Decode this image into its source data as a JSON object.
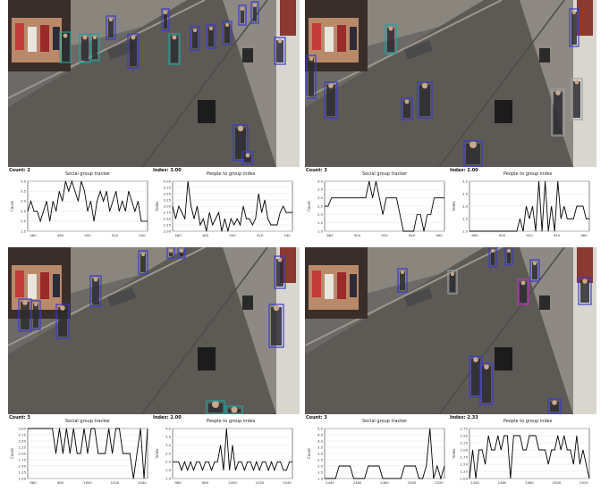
{
  "panels": [
    {
      "count_text": "Count: 2",
      "index_text": "Index: 3.00",
      "left_title": "Social group tracker",
      "right_title": "People to group index"
    },
    {
      "count_text": "Count: 3",
      "index_text": "Index: 2.00",
      "left_title": "Social group tracker",
      "right_title": "People to group index"
    },
    {
      "count_text": "Count: 3",
      "index_text": "Index: 2.00",
      "left_title": "Social group tracker",
      "right_title": "People to group index"
    },
    {
      "count_text": "Count: 3",
      "index_text": "Index: 2.33",
      "left_title": "Social group tracker",
      "right_title": "People to group index"
    }
  ],
  "axis_labels": {
    "left_y": "Count",
    "right_y": "Index"
  },
  "colors": {
    "box_blue": "#3a3ad0",
    "box_teal": "#1aa3a3",
    "box_magenta": "#c02fc0",
    "box_gray": "#9aa0a0",
    "line": "#000000"
  },
  "chart_data": [
    {
      "type": "line",
      "panel": 1,
      "title": "Social group tracker",
      "ylabel": "Count",
      "x_ticks": [
        "460",
        "480",
        "500",
        "520",
        "540"
      ],
      "y_ticks": [
        "1.5",
        "2.0",
        "2.5",
        "3.0",
        "3.5",
        "4.0"
      ],
      "ylim": [
        1.5,
        4.0
      ],
      "values": [
        2.5,
        3,
        2.5,
        2.5,
        2,
        2.5,
        3,
        2,
        3,
        2.5,
        3.5,
        3,
        4,
        3.5,
        4,
        3.5,
        3,
        4,
        3.5,
        2.5,
        3,
        2,
        3,
        3.5,
        3,
        3.5,
        2.5,
        3,
        3.5,
        2.5,
        3,
        2.5,
        3.5,
        3,
        2.5,
        3,
        2,
        2,
        2
      ]
    },
    {
      "type": "line",
      "panel": 1,
      "title": "People to group index",
      "ylabel": "Index",
      "x_ticks": [
        "460",
        "480",
        "500",
        "520",
        "540"
      ],
      "y_ticks": [
        "2.00",
        "2.25",
        "2.50",
        "2.75",
        "3.00",
        "3.25",
        "3.50",
        "3.75",
        "4.00"
      ],
      "ylim": [
        2.0,
        4.0
      ],
      "values": [
        3,
        2.5,
        3,
        2.75,
        2.5,
        4,
        3,
        2.5,
        3,
        2.25,
        2.5,
        2,
        2.75,
        2.25,
        2.5,
        2.75,
        2,
        2.5,
        2,
        2.5,
        2.25,
        2.5,
        2.25,
        3,
        2.5,
        2.5,
        2.25,
        2.5,
        3.5,
        2.75,
        3.25,
        2.5,
        2.25,
        2.25,
        2.25,
        2.75,
        3,
        2.75,
        2.75,
        2.75
      ]
    },
    {
      "type": "line",
      "panel": 2,
      "title": "Social group tracker",
      "ylabel": "Count",
      "x_ticks": [
        "880",
        "900",
        "920",
        "940",
        "960"
      ],
      "y_ticks": [
        "1.0",
        "1.5",
        "2.0",
        "2.5",
        "3.0",
        "3.5",
        "4.0"
      ],
      "ylim": [
        1.0,
        4.0
      ],
      "values": [
        2.5,
        2.5,
        3,
        3,
        3,
        3,
        3,
        3,
        3,
        3,
        3,
        3,
        3,
        4,
        3,
        4,
        3,
        2,
        3,
        3,
        3,
        3,
        2,
        1,
        1,
        1,
        1,
        2,
        2,
        1,
        2,
        2,
        3,
        3,
        3,
        3
      ]
    },
    {
      "type": "line",
      "panel": 2,
      "title": "People to group index",
      "ylabel": "Index",
      "x_ticks": [
        "880",
        "900",
        "920",
        "940",
        "960"
      ],
      "y_ticks": [
        "1.0",
        "1.5",
        "2.0",
        "2.5",
        "3.0"
      ],
      "ylim": [
        1.0,
        3.0
      ],
      "values": [
        1,
        1,
        1,
        1,
        1,
        1,
        1,
        1,
        1,
        1,
        1,
        1,
        1,
        1,
        1,
        1,
        1.5,
        1,
        2,
        1.5,
        2,
        1,
        3,
        1,
        3,
        1,
        2,
        1,
        3,
        1.5,
        2,
        1.5,
        1.5,
        1.5,
        2,
        2,
        2,
        1.5,
        1.5
      ]
    },
    {
      "type": "line",
      "panel": 3,
      "title": "Social group tracker",
      "ylabel": "Count",
      "x_ticks": [
        "960",
        "980",
        "1000",
        "1020",
        "1040"
      ],
      "y_ticks": [
        "1.00",
        "1.25",
        "1.50",
        "1.75",
        "2.00",
        "2.25",
        "2.50",
        "2.75",
        "3.00"
      ],
      "ylim": [
        1.0,
        3.0
      ],
      "values": [
        3,
        3,
        3,
        3,
        3,
        3,
        3,
        3,
        2,
        3,
        2,
        3,
        2,
        3,
        2,
        2,
        3,
        2,
        3,
        3,
        2,
        2,
        2,
        3,
        2,
        3,
        3,
        2,
        2,
        2,
        1,
        2,
        3,
        1,
        3
      ]
    },
    {
      "type": "line",
      "panel": 3,
      "title": "People to group index",
      "ylabel": "Index",
      "x_ticks": [
        "960",
        "980",
        "1000",
        "1020",
        "1040"
      ],
      "y_ticks": [
        "1.0",
        "1.5",
        "2.0",
        "2.5",
        "3.0",
        "3.5",
        "4.0"
      ],
      "ylim": [
        1.0,
        4.0
      ],
      "values": [
        2,
        2,
        2,
        1.5,
        2,
        1.5,
        2,
        1.5,
        2,
        2,
        1.5,
        2,
        2,
        1.5,
        2,
        2,
        3,
        1.5,
        4,
        1.5,
        3,
        1.5,
        2,
        2,
        1.5,
        2,
        2,
        1.5,
        2,
        1.5,
        2,
        2,
        1.5,
        2,
        1.5,
        2,
        2,
        1.5,
        1.5,
        2,
        2
      ]
    },
    {
      "type": "line",
      "panel": 4,
      "title": "Social group tracker",
      "ylabel": "Count",
      "x_ticks": [
        "2440",
        "2460",
        "2480",
        "2500",
        "2520"
      ],
      "y_ticks": [
        "1.0",
        "1.5",
        "2.0",
        "2.5",
        "3.0",
        "3.5",
        "4.0",
        "4.5",
        "5.0"
      ],
      "ylim": [
        1.0,
        5.0
      ],
      "values": [
        1,
        1,
        1,
        1,
        2,
        2,
        2,
        2,
        1,
        1,
        1,
        1,
        2,
        2,
        2,
        2,
        1,
        1,
        1,
        1,
        1,
        1,
        2,
        2,
        2,
        2,
        1,
        1,
        2,
        5,
        1,
        2,
        1,
        2
      ]
    },
    {
      "type": "line",
      "panel": 4,
      "title": "People to group index",
      "ylabel": "Index",
      "x_ticks": [
        "2440",
        "2460",
        "2480",
        "2500",
        "2520"
      ],
      "y_ticks": [
        "1.00",
        "1.25",
        "1.50",
        "1.75",
        "2.00",
        "2.25",
        "2.50",
        "2.75"
      ],
      "ylim": [
        1.0,
        2.75
      ],
      "values": [
        1,
        2,
        1,
        2,
        2,
        1.5,
        2.5,
        2,
        2,
        2.5,
        2,
        2.5,
        2.5,
        1,
        2.5,
        2.5,
        2.5,
        2,
        2,
        2.5,
        2.5,
        2.5,
        2,
        2,
        2,
        1.5,
        2,
        2,
        2.5,
        2,
        2.5,
        2,
        2,
        1.5,
        2.5,
        1.5,
        2,
        1.5,
        1
      ]
    }
  ]
}
